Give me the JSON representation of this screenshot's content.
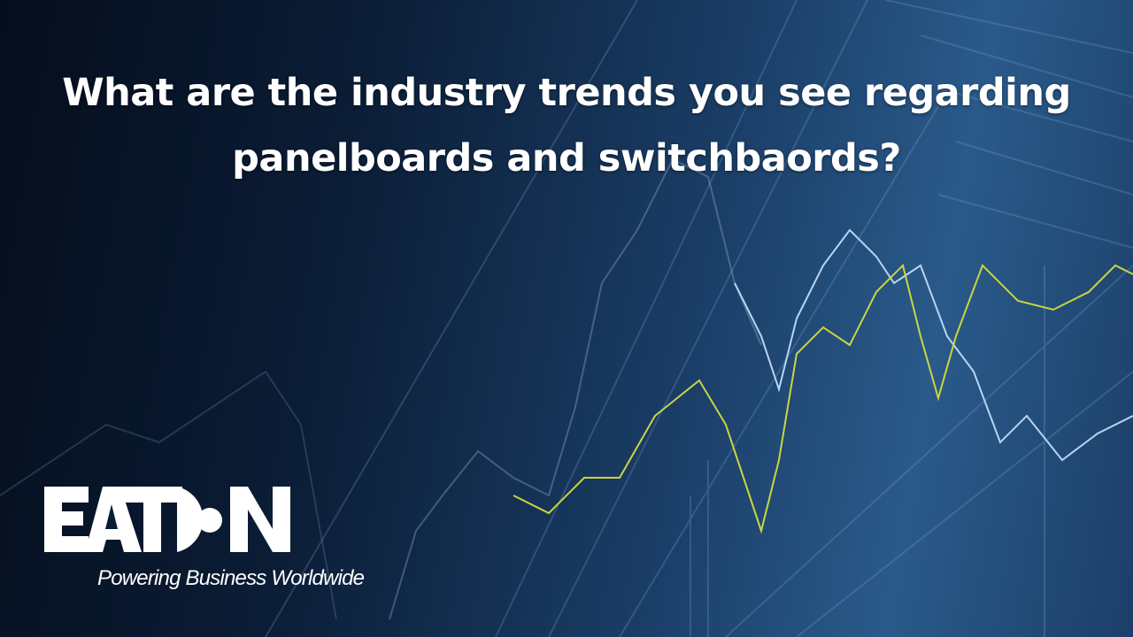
{
  "slide": {
    "title_line1": "What are the industry trends you see regarding",
    "title_line2": "panelboards and switchbaords?"
  },
  "brand": {
    "logo_text": "EATON",
    "tagline": "Powering Business Worldwide"
  },
  "colors": {
    "background_dark": "#050d1c",
    "background_blue": "#2a5a8a",
    "trend_line_yellow": "#c8d640",
    "trend_line_light": "#b8d4f0",
    "text": "#ffffff"
  }
}
